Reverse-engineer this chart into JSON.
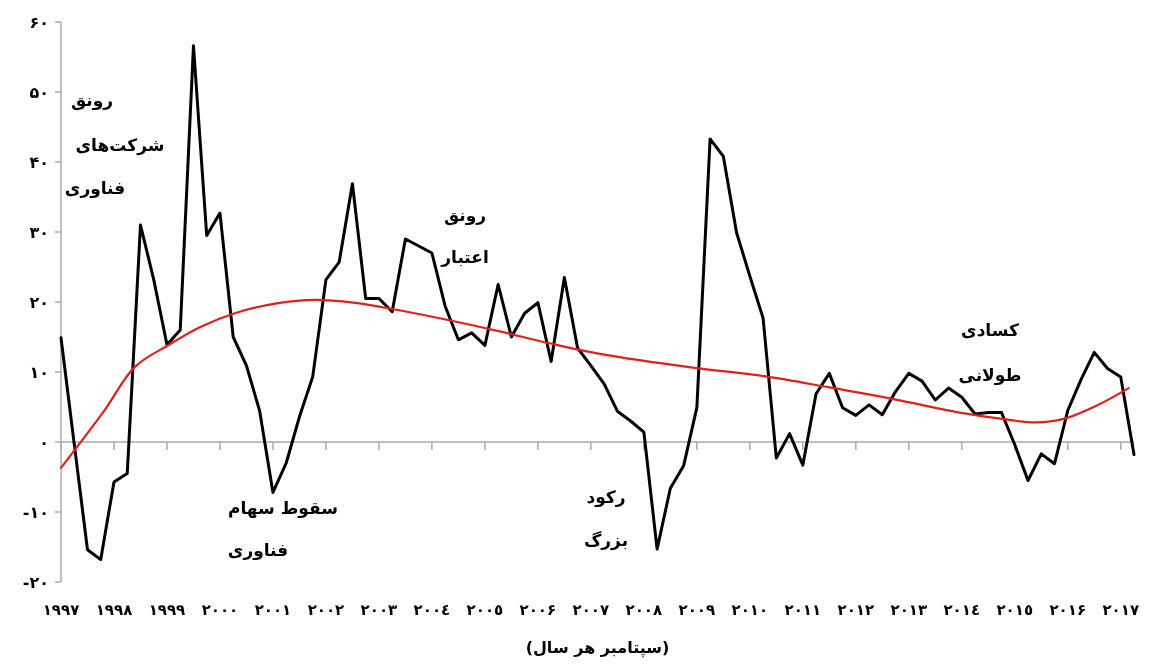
{
  "chart_data": {
    "type": "line",
    "xlabel": "(سپتامبر هر سال)",
    "xlim": [
      1997,
      2017.25
    ],
    "xticks": [
      {
        "value": 1997,
        "label": "۱۹۹۷"
      },
      {
        "value": 1998,
        "label": "۱۹۹۸"
      },
      {
        "value": 1999,
        "label": "۱۹۹۹"
      },
      {
        "value": 2000,
        "label": "۲۰۰۰"
      },
      {
        "value": 2001,
        "label": "۲۰۰۱"
      },
      {
        "value": 2002,
        "label": "۲۰۰۲"
      },
      {
        "value": 2003,
        "label": "۲۰۰۳"
      },
      {
        "value": 2004,
        "label": "۲۰۰٤"
      },
      {
        "value": 2005,
        "label": "۲۰۰٥"
      },
      {
        "value": 2006,
        "label": "۲۰۰۶"
      },
      {
        "value": 2007,
        "label": "۲۰۰۷"
      },
      {
        "value": 2008,
        "label": "۲۰۰۸"
      },
      {
        "value": 2009,
        "label": "۲۰۰۹"
      },
      {
        "value": 2010,
        "label": "۲۰۱۰"
      },
      {
        "value": 2011,
        "label": "۲۰۱۱"
      },
      {
        "value": 2012,
        "label": "۲۰۱۲"
      },
      {
        "value": 2013,
        "label": "۲۰۱۳"
      },
      {
        "value": 2014,
        "label": "۲۰۱٤"
      },
      {
        "value": 2015,
        "label": "۲۰۱٥"
      },
      {
        "value": 2016,
        "label": "۲۰۱۶"
      },
      {
        "value": 2017,
        "label": "۲۰۱۷"
      }
    ],
    "ylim": [
      -20,
      60
    ],
    "yticks": [
      {
        "value": -20,
        "label": "-۲۰"
      },
      {
        "value": -10,
        "label": "-۱۰"
      },
      {
        "value": 0,
        "label": "۰"
      },
      {
        "value": 10,
        "label": "۱۰"
      },
      {
        "value": 20,
        "label": "۲۰"
      },
      {
        "value": 30,
        "label": "۳۰"
      },
      {
        "value": 40,
        "label": "۴۰"
      },
      {
        "value": 50,
        "label": "۵۰"
      },
      {
        "value": 60,
        "label": "۶۰"
      }
    ],
    "series": [
      {
        "color": "#000000",
        "x": [
          1997,
          1997.25,
          1997.5,
          1997.75,
          1998,
          1998.25,
          1998.5,
          1998.75,
          1999,
          1999.25,
          1999.5,
          1999.75,
          2000,
          2000.25,
          2000.5,
          2000.75,
          2001,
          2001.25,
          2001.5,
          2001.75,
          2002,
          2002.25,
          2002.5,
          2002.75,
          2003,
          2003.25,
          2003.5,
          2003.75,
          2004,
          2004.25,
          2004.5,
          2004.75,
          2005,
          2005.25,
          2005.5,
          2005.75,
          2006,
          2006.25,
          2006.5,
          2006.75,
          2007,
          2007.25,
          2007.5,
          2007.75,
          2008,
          2008.25,
          2008.5,
          2008.75,
          2009,
          2009.25,
          2009.5,
          2009.75,
          2010,
          2010.25,
          2010.5,
          2010.75,
          2011,
          2011.25,
          2011.5,
          2011.75,
          2012,
          2012.25,
          2012.5,
          2012.75,
          2013,
          2013.25,
          2013.5,
          2013.75,
          2014,
          2014.25,
          2014.5,
          2014.75,
          2015,
          2015.25,
          2015.5,
          2015.75,
          2016,
          2016.25,
          2016.5,
          2016.75,
          2017,
          2017.25
        ],
        "values": [
          14.9,
          -0.3,
          -15.4,
          -16.8,
          -5.7,
          -4.5,
          31.0,
          23.2,
          13.9,
          16.0,
          56.6,
          29.5,
          32.7,
          15.0,
          10.9,
          4.4,
          -7.2,
          -3.0,
          3.6,
          9.3,
          23.2,
          25.7,
          36.9,
          20.5,
          20.5,
          18.6,
          29.0,
          28.0,
          27.0,
          19.4,
          14.6,
          15.6,
          13.8,
          22.5,
          15.0,
          18.4,
          19.9,
          11.5,
          23.5,
          13.4,
          10.9,
          8.3,
          4.4,
          3.0,
          1.4,
          -15.3,
          -6.6,
          -3.4,
          4.9,
          43.3,
          40.8,
          29.9,
          23.7,
          17.7,
          -2.3,
          1.2,
          -3.3,
          6.9,
          9.8,
          4.9,
          3.8,
          5.3,
          3.9,
          7.2,
          9.8,
          8.7,
          6.0,
          7.7,
          6.4,
          4.0,
          4.2,
          4.2,
          -0.4,
          -5.5,
          -1.7,
          -3.1,
          4.5,
          8.9,
          12.8,
          10.5,
          9.3,
          -1.8
        ]
      },
      {
        "color": "#e0201c",
        "x": [
          1997,
          1997.81,
          1998.39,
          1999.04,
          1999.62,
          2000.28,
          2001.07,
          2001.8,
          2002.52,
          2003.25,
          2004.26,
          2005.28,
          2006.22,
          2007.17,
          2008.96,
          2010.27,
          2011.5,
          2012.73,
          2013.96,
          2014.76,
          2015.41,
          2015.92,
          2016.57,
          2017.15
        ],
        "values": [
          -3.7,
          4.4,
          10.7,
          13.9,
          16.4,
          18.4,
          19.8,
          20.3,
          19.9,
          19.0,
          17.5,
          15.8,
          14.1,
          12.6,
          10.6,
          9.4,
          7.8,
          6.1,
          4.2,
          3.3,
          2.8,
          3.3,
          5.3,
          7.7
        ]
      }
    ],
    "annotations": [
      "رونق",
      "شرکت‌های",
      "فناوری",
      "رونق",
      "اعتبار",
      "سقوط سهام",
      "فناوری",
      "رکود",
      "بزرگ",
      "کسادی",
      "طولانی"
    ]
  }
}
